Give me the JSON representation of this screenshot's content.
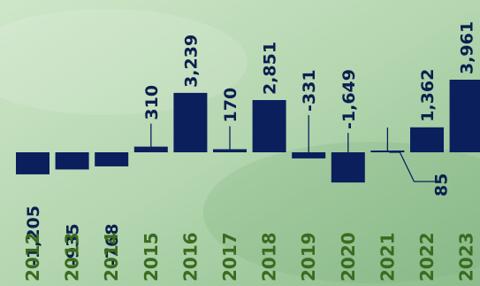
{
  "colors": {
    "bar": "#0a1f5c",
    "value_text": "#0b1f4e",
    "tick_text": "#3b6b1e",
    "baseline": "#0a1f5c",
    "background_light": "#c7e3c2",
    "background_dark": "#8fbf8f"
  },
  "chart_data": {
    "type": "bar",
    "title": "",
    "xlabel": "",
    "ylabel": "",
    "categories": [
      "2012",
      "2013",
      "2014",
      "2015",
      "2016",
      "2017",
      "2018",
      "2019",
      "2020",
      "2021",
      "2022",
      "2023"
    ],
    "values": [
      -1205,
      -935,
      -768,
      310,
      3239,
      170,
      2851,
      -331,
      -1649,
      85,
      1362,
      3961
    ],
    "value_labels": [
      "-1,205",
      "-935",
      "-768",
      "310",
      "3,239",
      "170",
      "2,851",
      "-331",
      "-1,649",
      "85",
      "1,362",
      "3,961"
    ],
    "ylim": [
      -1650,
      4000
    ],
    "grid": false,
    "legend": "none"
  }
}
